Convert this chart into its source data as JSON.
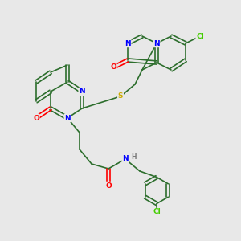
{
  "background_color": "#e8e8e8",
  "figsize": [
    3.0,
    3.0
  ],
  "dpi": 100,
  "atom_colors": {
    "C": "#2d6e2d",
    "N": "#0000ff",
    "O": "#ff0000",
    "S": "#ccaa00",
    "Cl": "#44cc00",
    "H": "#777777"
  },
  "bond_color": "#2d6e2d",
  "bond_width": 1.2
}
